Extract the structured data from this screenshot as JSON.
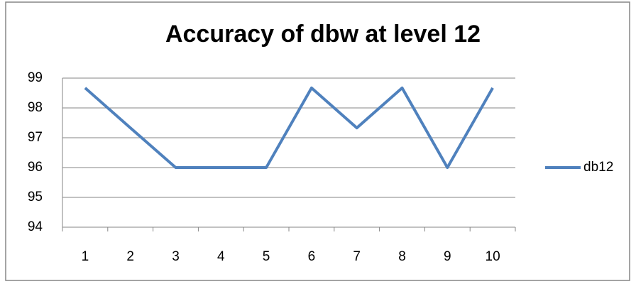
{
  "chart_data": {
    "type": "line",
    "title": "Accuracy of dbw at level 12",
    "categories": [
      "1",
      "2",
      "3",
      "4",
      "5",
      "6",
      "7",
      "8",
      "9",
      "10"
    ],
    "series": [
      {
        "name": "db12",
        "color": "#4f81bd",
        "values": [
          98.67,
          97.33,
          96,
          96,
          96,
          98.67,
          97.33,
          98.67,
          96,
          98.67
        ]
      }
    ],
    "ylim": [
      94,
      99
    ],
    "yticks": [
      94,
      95,
      96,
      97,
      98,
      99
    ],
    "grid": true,
    "legend": "right"
  }
}
